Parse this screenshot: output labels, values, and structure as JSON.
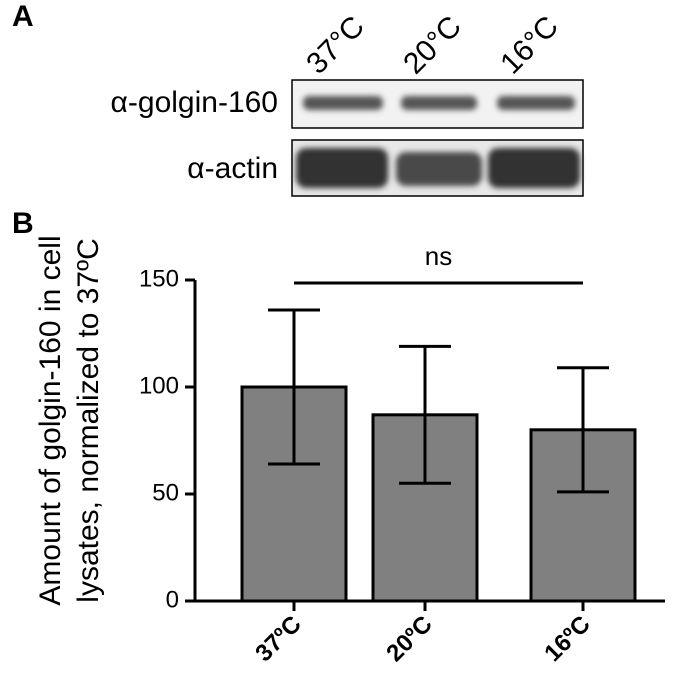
{
  "blot": {
    "label": "A",
    "lanes": [
      "37°C",
      "20°C",
      "16°C"
    ],
    "rows": [
      "α-golgin-160",
      "α-actin"
    ]
  },
  "chart_data": {
    "type": "bar",
    "label": "B",
    "ylabel": [
      "Amount of golgin-160 in cell",
      "lysates, normalized to 37ºC"
    ],
    "categories": [
      "37ºC",
      "20ºC",
      "16ºC"
    ],
    "values": [
      100,
      87,
      80
    ],
    "errors": [
      36,
      32,
      29
    ],
    "color": "#808080",
    "ylim": [
      0,
      150
    ],
    "yticks": [
      0,
      50,
      100,
      150
    ],
    "annotation": "ns"
  }
}
